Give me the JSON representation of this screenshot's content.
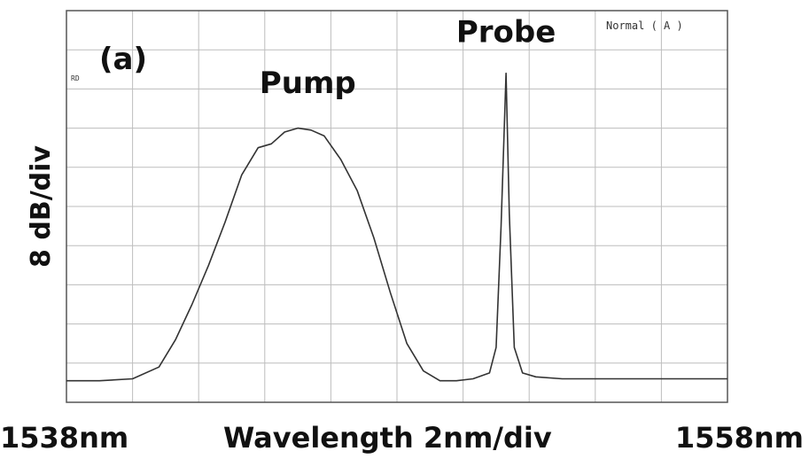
{
  "chart_data": {
    "type": "line",
    "panel_label": "(a)",
    "mode_label": "Normal ( A )",
    "corner_mark": "RD",
    "ylabel": "8 dB/div",
    "xlabel": "Wavelength 2nm/div",
    "x_start_label": "1538nm",
    "x_end_label": "1558nm",
    "xlim": [
      1538,
      1558
    ],
    "ylim": [
      0,
      10
    ],
    "grid": true,
    "annotations": [
      {
        "text": "Pump",
        "x": 1545.3,
        "y": 7.9
      },
      {
        "text": "Probe",
        "x": 1551.3,
        "y": 9.2
      }
    ],
    "series": [
      {
        "x": [
          1538.0,
          1539.0,
          1540.0,
          1540.8,
          1541.3,
          1541.8,
          1542.3,
          1542.8,
          1543.3,
          1543.8,
          1544.2,
          1544.6,
          1545.0,
          1545.4,
          1545.8,
          1546.3,
          1546.8,
          1547.3,
          1547.8,
          1548.3,
          1548.8,
          1549.3,
          1549.8,
          1550.3,
          1550.8,
          1551.0,
          1551.15,
          1551.3,
          1551.4,
          1551.55,
          1551.8,
          1552.2,
          1553.0,
          1554.0,
          1555.0,
          1556.0,
          1557.0,
          1558.0
        ],
        "y": [
          0.55,
          0.55,
          0.6,
          0.9,
          1.6,
          2.5,
          3.5,
          4.6,
          5.8,
          6.5,
          6.6,
          6.9,
          7.0,
          6.95,
          6.8,
          6.2,
          5.4,
          4.2,
          2.8,
          1.5,
          0.8,
          0.55,
          0.55,
          0.6,
          0.75,
          1.4,
          4.5,
          8.4,
          4.8,
          1.4,
          0.75,
          0.65,
          0.6,
          0.6,
          0.6,
          0.6,
          0.6,
          0.6
        ]
      }
    ]
  }
}
